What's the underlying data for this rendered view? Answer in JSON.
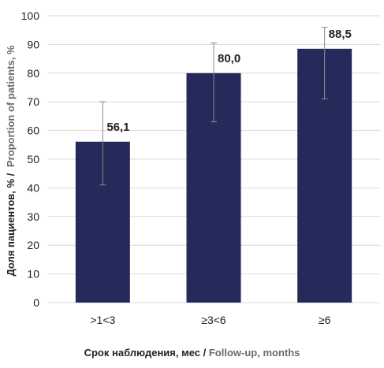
{
  "chart_data": {
    "type": "bar",
    "categories": [
      ">1<3",
      "≥3<6",
      "≥6"
    ],
    "values": [
      56.1,
      80.0,
      88.5
    ],
    "data_labels": [
      "56,1",
      "80,0",
      "88,5"
    ],
    "error_bars": [
      {
        "low": 41,
        "high": 70
      },
      {
        "low": 63,
        "high": 90.5
      },
      {
        "low": 71,
        "high": 96
      }
    ],
    "xlabel": {
      "ru": "Срок наблюдения, мес /",
      "en": "Follow-up, months"
    },
    "ylabel": {
      "ru": "Доля пациентов, % /",
      "en": "Proportion of patients, %"
    },
    "ylim": [
      0,
      100
    ],
    "yticks": [
      0,
      10,
      20,
      30,
      40,
      50,
      60,
      70,
      80,
      90,
      100
    ],
    "grid": true,
    "legend": "none",
    "colors": {
      "bar": "#252a5a",
      "grid": "#d9d9d9",
      "error": "#8c8c8c"
    }
  }
}
